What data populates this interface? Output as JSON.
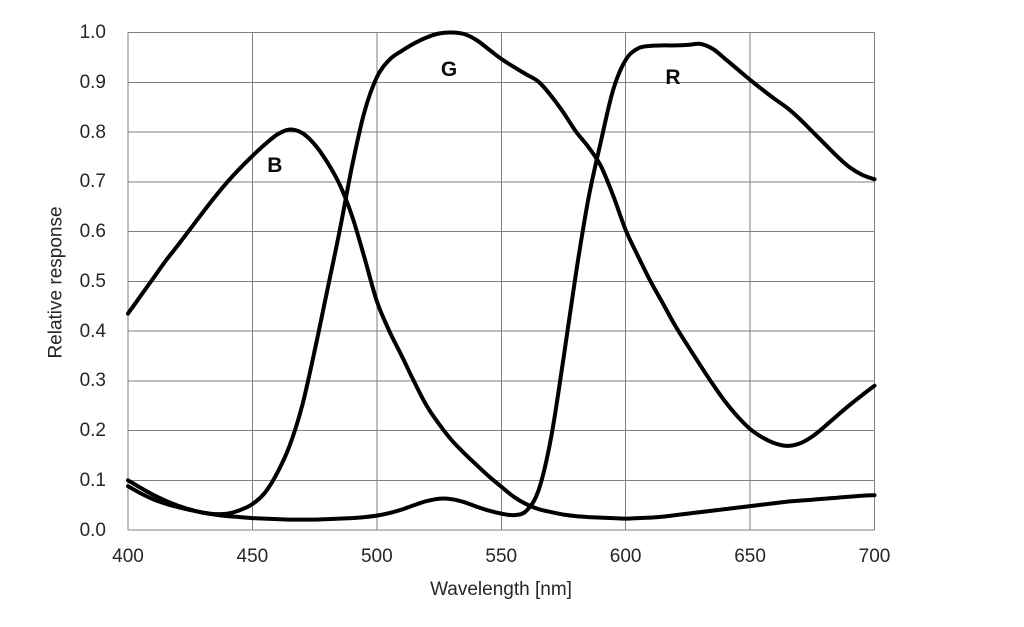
{
  "figure": {
    "background": "#ffffff",
    "text_color": "#262626"
  },
  "chart_data": {
    "type": "line",
    "title": "",
    "xlabel": "Wavelength [nm]",
    "ylabel": "Relative response",
    "xlim": [
      400,
      700
    ],
    "ylim": [
      0.0,
      1.0
    ],
    "x_ticks": [
      "400",
      "450",
      "500",
      "550",
      "600",
      "650",
      "700"
    ],
    "y_ticks": [
      "0.0",
      "0.1",
      "0.2",
      "0.3",
      "0.4",
      "0.5",
      "0.6",
      "0.7",
      "0.8",
      "0.9",
      "1.0"
    ],
    "grid": true,
    "grid_color": "#7f7f7f",
    "legend": "none, curves labeled inline",
    "line_color": "#000000",
    "line_width": 4,
    "x": [
      400,
      405,
      410,
      415,
      420,
      425,
      430,
      435,
      440,
      445,
      450,
      455,
      460,
      465,
      470,
      475,
      480,
      485,
      490,
      495,
      500,
      505,
      510,
      515,
      520,
      525,
      530,
      535,
      540,
      545,
      550,
      555,
      560,
      565,
      570,
      575,
      580,
      585,
      590,
      595,
      600,
      605,
      610,
      615,
      620,
      625,
      630,
      635,
      640,
      645,
      650,
      655,
      660,
      665,
      670,
      675,
      680,
      685,
      690,
      695,
      700
    ],
    "series": [
      {
        "name": "B",
        "label_pos": {
          "x": 459,
          "y": 0.732
        },
        "values": [
          0.435,
          0.47,
          0.505,
          0.54,
          0.572,
          0.605,
          0.638,
          0.67,
          0.7,
          0.727,
          0.752,
          0.775,
          0.795,
          0.805,
          0.798,
          0.775,
          0.74,
          0.695,
          0.632,
          0.548,
          0.46,
          0.4,
          0.35,
          0.298,
          0.25,
          0.213,
          0.181,
          0.155,
          0.131,
          0.108,
          0.087,
          0.067,
          0.052,
          0.042,
          0.036,
          0.031,
          0.028,
          0.026,
          0.025,
          0.024,
          0.023,
          0.024,
          0.025,
          0.027,
          0.03,
          0.033,
          0.036,
          0.039,
          0.042,
          0.045,
          0.048,
          0.051,
          0.054,
          0.057,
          0.059,
          0.061,
          0.063,
          0.065,
          0.067,
          0.069,
          0.07
        ]
      },
      {
        "name": "G",
        "label_pos": {
          "x": 529,
          "y": 0.925
        },
        "values": [
          0.1,
          0.085,
          0.071,
          0.059,
          0.049,
          0.041,
          0.035,
          0.032,
          0.033,
          0.04,
          0.052,
          0.075,
          0.115,
          0.17,
          0.25,
          0.36,
          0.48,
          0.6,
          0.73,
          0.84,
          0.91,
          0.945,
          0.963,
          0.978,
          0.99,
          0.998,
          1.0,
          0.997,
          0.985,
          0.966,
          0.947,
          0.931,
          0.916,
          0.901,
          0.873,
          0.839,
          0.801,
          0.77,
          0.732,
          0.672,
          0.603,
          0.55,
          0.5,
          0.455,
          0.41,
          0.37,
          0.331,
          0.293,
          0.258,
          0.228,
          0.203,
          0.186,
          0.174,
          0.169,
          0.174,
          0.188,
          0.208,
          0.23,
          0.251,
          0.271,
          0.29
        ]
      },
      {
        "name": "R",
        "label_pos": {
          "x": 619,
          "y": 0.909
        },
        "values": [
          0.088,
          0.074,
          0.062,
          0.053,
          0.046,
          0.04,
          0.035,
          0.031,
          0.028,
          0.026,
          0.024,
          0.023,
          0.022,
          0.021,
          0.021,
          0.021,
          0.022,
          0.023,
          0.024,
          0.026,
          0.029,
          0.034,
          0.041,
          0.05,
          0.058,
          0.063,
          0.062,
          0.056,
          0.047,
          0.039,
          0.033,
          0.03,
          0.038,
          0.08,
          0.185,
          0.345,
          0.515,
          0.665,
          0.78,
          0.885,
          0.945,
          0.968,
          0.973,
          0.974,
          0.974,
          0.975,
          0.977,
          0.967,
          0.947,
          0.926,
          0.905,
          0.885,
          0.866,
          0.848,
          0.826,
          0.801,
          0.776,
          0.751,
          0.729,
          0.714,
          0.705
        ]
      }
    ]
  }
}
